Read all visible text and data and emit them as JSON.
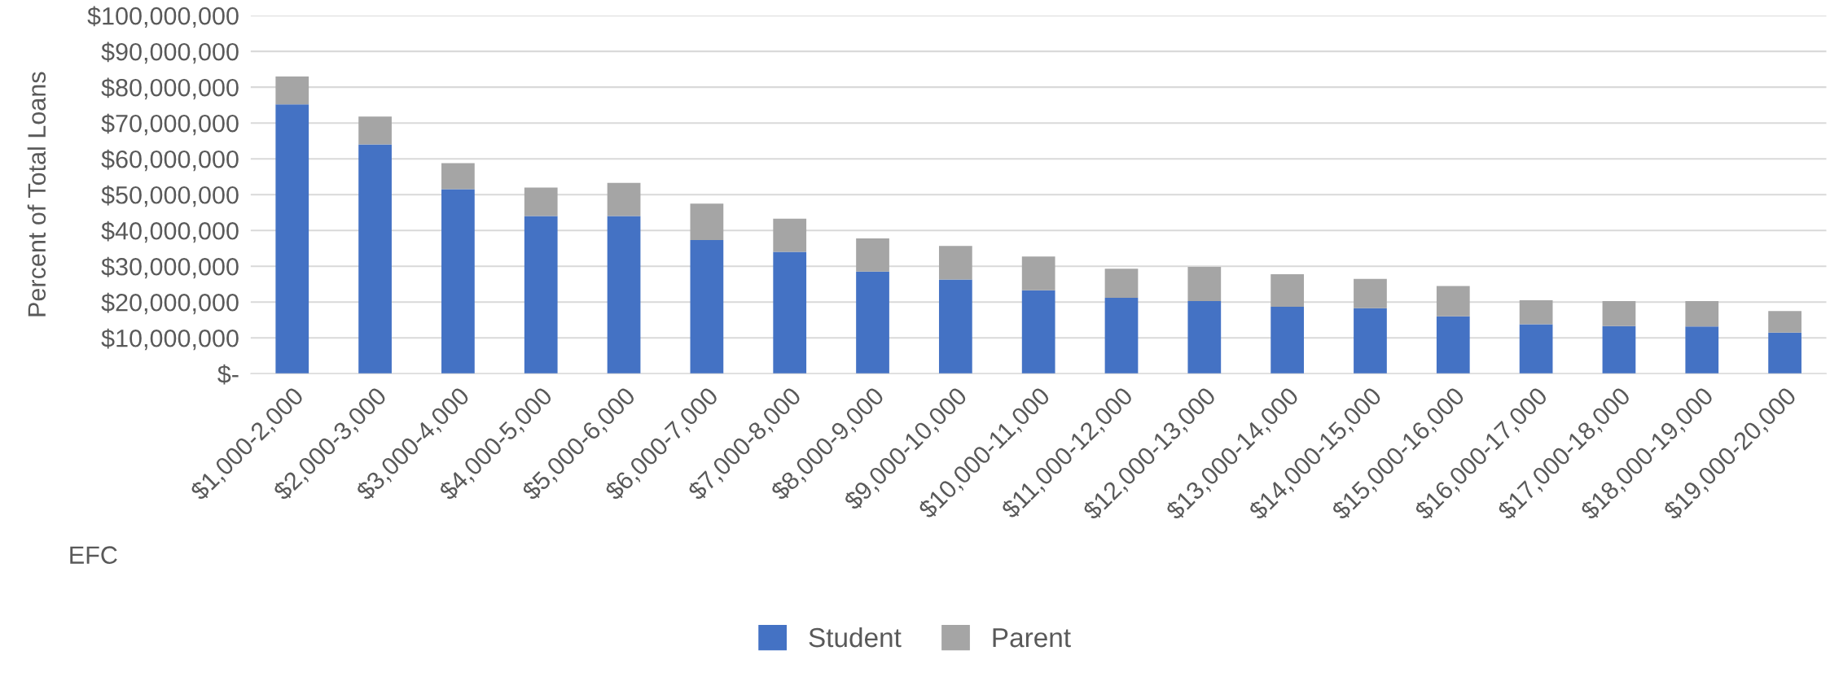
{
  "chart_data": {
    "type": "bar",
    "stacked": true,
    "xlabel": "EFC",
    "ylabel": "Percent of Total Loans",
    "categories": [
      "$1,000-2,000",
      "$2,000-3,000",
      "$3,000-4,000",
      "$4,000-5,000",
      "$5,000-6,000",
      "$6,000-7,000",
      "$7,000-8,000",
      "$8,000-9,000",
      "$9,000-10,000",
      "$10,000-11,000",
      "$11,000-12,000",
      "$12,000-13,000",
      "$13,000-14,000",
      "$14,000-15,000",
      "$15,000-16,000",
      "$16,000-17,000",
      "$17,000-18,000",
      "$18,000-19,000",
      "$19,000-20,000"
    ],
    "series": [
      {
        "name": "Student",
        "color": "#4472c4",
        "values": [
          75200000,
          64000000,
          51500000,
          44000000,
          44000000,
          37300000,
          34000000,
          28500000,
          26300000,
          23300000,
          21200000,
          20300000,
          18700000,
          18300000,
          16000000,
          13800000,
          13300000,
          13200000,
          11500000
        ]
      },
      {
        "name": "Parent",
        "color": "#a5a5a5",
        "values": [
          7800000,
          7800000,
          7300000,
          8000000,
          9300000,
          10200000,
          9300000,
          9300000,
          9400000,
          9400000,
          8100000,
          9500000,
          9100000,
          8200000,
          8500000,
          6700000,
          7000000,
          7100000,
          6000000
        ]
      }
    ],
    "ylim": [
      0,
      100000000
    ],
    "yticks": [
      {
        "value": 0,
        "label": "$-"
      },
      {
        "value": 10000000,
        "label": "$10,000,000"
      },
      {
        "value": 20000000,
        "label": "$20,000,000"
      },
      {
        "value": 30000000,
        "label": "$30,000,000"
      },
      {
        "value": 40000000,
        "label": "$40,000,000"
      },
      {
        "value": 50000000,
        "label": "$50,000,000"
      },
      {
        "value": 60000000,
        "label": "$60,000,000"
      },
      {
        "value": 70000000,
        "label": "$70,000,000"
      },
      {
        "value": 80000000,
        "label": "$80,000,000"
      },
      {
        "value": 90000000,
        "label": "$90,000,000"
      },
      {
        "value": 100000000,
        "label": "$100,000,000"
      }
    ],
    "grid": "y",
    "legend": "bottom"
  }
}
